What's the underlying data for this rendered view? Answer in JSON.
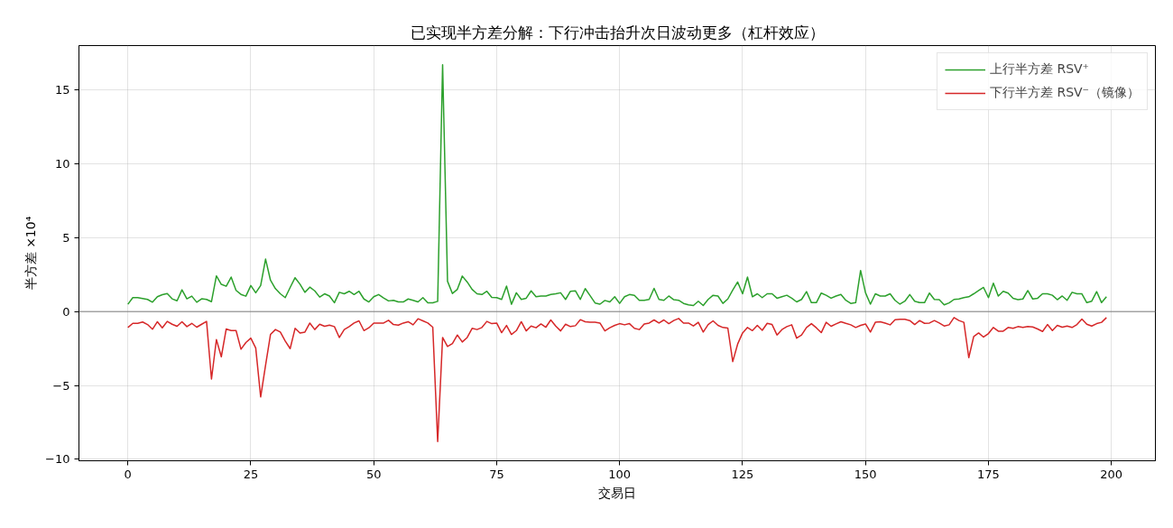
{
  "chart_data": {
    "type": "line",
    "title": "已实现半方差分解：下行冲击抬升次日波动更多（杠杆效应）",
    "xlabel": "交易日",
    "ylabel": "半方差 ×10⁴",
    "x": [
      0,
      1,
      2,
      3,
      4,
      5,
      6,
      7,
      8,
      9,
      10,
      11,
      12,
      13,
      14,
      15,
      16,
      17,
      18,
      19,
      20,
      21,
      22,
      23,
      24,
      25,
      26,
      27,
      28,
      29,
      30,
      31,
      32,
      33,
      34,
      35,
      36,
      37,
      38,
      39,
      40,
      41,
      42,
      43,
      44,
      45,
      46,
      47,
      48,
      49,
      50,
      51,
      52,
      53,
      54,
      55,
      56,
      57,
      58,
      59,
      60,
      61,
      62,
      63,
      64,
      65,
      66,
      67,
      68,
      69,
      70,
      71,
      72,
      73,
      74,
      75,
      76,
      77,
      78,
      79,
      80,
      81,
      82,
      83,
      84,
      85,
      86,
      87,
      88,
      89,
      90,
      91,
      92,
      93,
      94,
      95,
      96,
      97,
      98,
      99,
      100,
      101,
      102,
      103,
      104,
      105,
      106,
      107,
      108,
      109,
      110,
      111,
      112,
      113,
      114,
      115,
      116,
      117,
      118,
      119,
      120,
      121,
      122,
      123,
      124,
      125,
      126,
      127,
      128,
      129,
      130,
      131,
      132,
      133,
      134,
      135,
      136,
      137,
      138,
      139,
      140,
      141,
      142,
      143,
      144,
      145,
      146,
      147,
      148,
      149,
      150,
      151,
      152,
      153,
      154,
      155,
      156,
      157,
      158,
      159,
      160,
      161,
      162,
      163,
      164,
      165,
      166,
      167,
      168,
      169,
      170,
      171,
      172,
      173,
      174,
      175,
      176,
      177,
      178,
      179,
      180,
      181,
      182,
      183,
      184,
      185,
      186,
      187,
      188,
      189,
      190,
      191,
      192,
      193,
      194,
      195,
      196,
      197,
      198,
      199
    ],
    "series": [
      {
        "name": "上行半方差 RSV⁺",
        "color": "#2ca02c",
        "values": [
          0.49,
          0.94,
          0.94,
          0.88,
          0.82,
          0.63,
          1.0,
          1.14,
          1.22,
          0.86,
          0.73,
          1.47,
          0.86,
          1.04,
          0.63,
          0.86,
          0.82,
          0.67,
          2.41,
          1.84,
          1.71,
          2.33,
          1.43,
          1.16,
          1.04,
          1.76,
          1.27,
          1.76,
          3.55,
          2.12,
          1.55,
          1.2,
          0.94,
          1.63,
          2.29,
          1.85,
          1.3,
          1.65,
          1.4,
          0.98,
          1.2,
          1.05,
          0.6,
          1.3,
          1.2,
          1.37,
          1.15,
          1.37,
          0.85,
          0.65,
          1.0,
          1.15,
          0.92,
          0.72,
          0.76,
          0.65,
          0.65,
          0.85,
          0.76,
          0.65,
          0.94,
          0.59,
          0.59,
          0.69,
          16.7,
          2.05,
          1.22,
          1.5,
          2.4,
          2.0,
          1.5,
          1.2,
          1.15,
          1.37,
          0.96,
          0.94,
          0.82,
          1.72,
          0.49,
          1.27,
          0.82,
          0.9,
          1.4,
          1.0,
          1.05,
          1.05,
          1.15,
          1.2,
          1.27,
          0.82,
          1.37,
          1.4,
          0.82,
          1.55,
          1.07,
          0.58,
          0.5,
          0.75,
          0.65,
          1.0,
          0.55,
          1.0,
          1.15,
          1.1,
          0.76,
          0.76,
          0.82,
          1.57,
          0.82,
          0.76,
          1.05,
          0.8,
          0.76,
          0.55,
          0.45,
          0.41,
          0.7,
          0.41,
          0.82,
          1.1,
          1.05,
          0.55,
          0.85,
          1.45,
          2.0,
          1.2,
          2.33,
          1.0,
          1.2,
          0.94,
          1.2,
          1.2,
          0.9,
          1.0,
          1.1,
          0.9,
          0.65,
          0.82,
          1.35,
          0.6,
          0.6,
          1.25,
          1.1,
          0.9,
          1.05,
          1.15,
          0.76,
          0.55,
          0.6,
          2.78,
          1.27,
          0.5,
          1.2,
          1.05,
          1.05,
          1.2,
          0.76,
          0.5,
          0.7,
          1.15,
          0.7,
          0.6,
          0.6,
          1.25,
          0.82,
          0.8,
          0.45,
          0.58,
          0.82,
          0.85,
          0.94,
          1.0,
          1.2,
          1.42,
          1.63,
          0.94,
          1.92,
          1.05,
          1.37,
          1.25,
          0.9,
          0.8,
          0.85,
          1.42,
          0.85,
          0.9,
          1.2,
          1.2,
          1.1,
          0.8,
          1.05,
          0.76,
          1.3,
          1.2,
          1.2,
          0.6,
          0.7,
          1.35,
          0.6,
          1.0
        ]
      },
      {
        "name": "下行半方差 RSV⁻（镜像）",
        "color": "#d62728",
        "values": [
          -1.08,
          -0.8,
          -0.8,
          -0.71,
          -0.88,
          -1.2,
          -0.69,
          -1.1,
          -0.67,
          -0.86,
          -1.0,
          -0.69,
          -1.02,
          -0.8,
          -1.06,
          -0.86,
          -0.67,
          -4.57,
          -1.9,
          -3.06,
          -1.18,
          -1.29,
          -1.29,
          -2.55,
          -2.1,
          -1.8,
          -2.47,
          -5.78,
          -3.63,
          -1.55,
          -1.22,
          -1.39,
          -2.0,
          -2.51,
          -1.14,
          -1.46,
          -1.39,
          -0.78,
          -1.22,
          -0.86,
          -1.0,
          -0.92,
          -1.02,
          -1.76,
          -1.22,
          -1.02,
          -0.78,
          -0.63,
          -1.29,
          -1.1,
          -0.78,
          -0.78,
          -0.78,
          -0.59,
          -0.88,
          -0.92,
          -0.78,
          -0.69,
          -0.9,
          -0.49,
          -0.63,
          -0.78,
          -1.06,
          -8.8,
          -1.76,
          -2.37,
          -2.16,
          -1.59,
          -2.06,
          -1.76,
          -1.14,
          -1.22,
          -1.08,
          -0.67,
          -0.82,
          -0.78,
          -1.43,
          -0.94,
          -1.55,
          -1.29,
          -0.69,
          -1.31,
          -0.98,
          -1.1,
          -0.84,
          -1.06,
          -0.57,
          -0.98,
          -1.31,
          -0.86,
          -1.02,
          -0.96,
          -0.55,
          -0.69,
          -0.73,
          -0.73,
          -0.78,
          -1.31,
          -1.1,
          -0.94,
          -0.82,
          -0.9,
          -0.82,
          -1.14,
          -1.22,
          -0.84,
          -0.78,
          -0.57,
          -0.78,
          -0.57,
          -0.82,
          -0.61,
          -0.47,
          -0.78,
          -0.78,
          -0.98,
          -0.73,
          -1.39,
          -0.88,
          -0.63,
          -0.94,
          -1.08,
          -1.12,
          -3.39,
          -2.2,
          -1.45,
          -1.08,
          -1.29,
          -0.94,
          -1.27,
          -0.8,
          -0.88,
          -1.59,
          -1.22,
          -1.02,
          -0.9,
          -1.8,
          -1.59,
          -1.08,
          -0.82,
          -1.1,
          -1.43,
          -0.73,
          -1.0,
          -0.84,
          -0.69,
          -0.8,
          -0.9,
          -1.08,
          -0.94,
          -0.84,
          -1.39,
          -0.73,
          -0.69,
          -0.78,
          -0.9,
          -0.55,
          -0.53,
          -0.53,
          -0.61,
          -0.88,
          -0.61,
          -0.8,
          -0.78,
          -0.61,
          -0.78,
          -0.98,
          -0.9,
          -0.41,
          -0.61,
          -0.73,
          -3.12,
          -1.69,
          -1.45,
          -1.73,
          -1.49,
          -1.08,
          -1.33,
          -1.33,
          -1.08,
          -1.14,
          -1.02,
          -1.08,
          -1.02,
          -1.04,
          -1.18,
          -1.35,
          -0.88,
          -1.29,
          -0.94,
          -1.06,
          -0.98,
          -1.08,
          -0.88,
          -0.51,
          -0.86,
          -0.98,
          -0.82,
          -0.73,
          -0.41
        ]
      }
    ],
    "xlim": [
      -9.95,
      208.95
    ],
    "ylim": [
      -10.1,
      18.0
    ],
    "xticks": [
      0,
      25,
      50,
      75,
      100,
      125,
      150,
      175,
      200
    ],
    "yticks": [
      {
        "value": -10,
        "label": "−10"
      },
      {
        "value": -5,
        "label": "−5"
      },
      0,
      5,
      10,
      15
    ],
    "ref_lines": [
      {
        "axis": "y",
        "value": 0,
        "color": "#808080"
      }
    ],
    "grid": true,
    "legend": "top right",
    "line_style": "solid"
  }
}
